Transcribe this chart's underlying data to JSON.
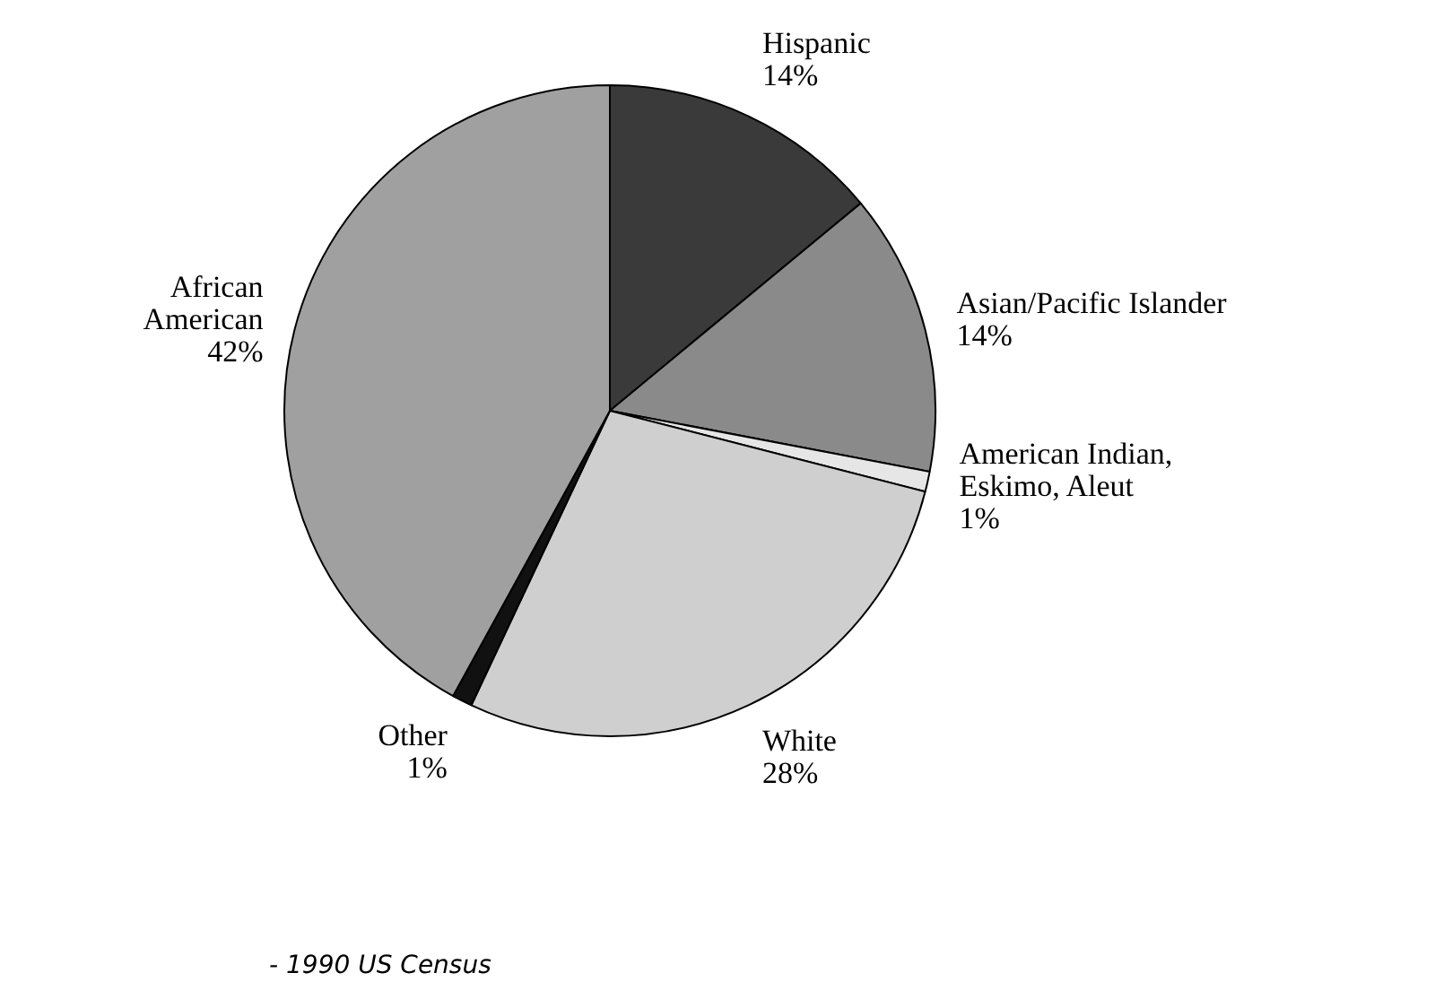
{
  "chart_data": {
    "type": "pie",
    "categories": [
      "Hispanic",
      "Asian/Pacific Islander",
      "American Indian, Eskimo, Aleut",
      "White",
      "Other",
      "African American"
    ],
    "values": [
      14,
      14,
      1,
      28,
      1,
      42
    ],
    "value_labels": [
      "14%",
      "14%",
      "1%",
      "28%",
      "1%",
      "42%"
    ],
    "colors": [
      "#3a3a3a",
      "#8a8a8a",
      "#e6e6e6",
      "#cfcfcf",
      "#111111",
      "#a0a0a0"
    ],
    "annotations": [
      "- 1990 US Census"
    ],
    "legend": false
  }
}
